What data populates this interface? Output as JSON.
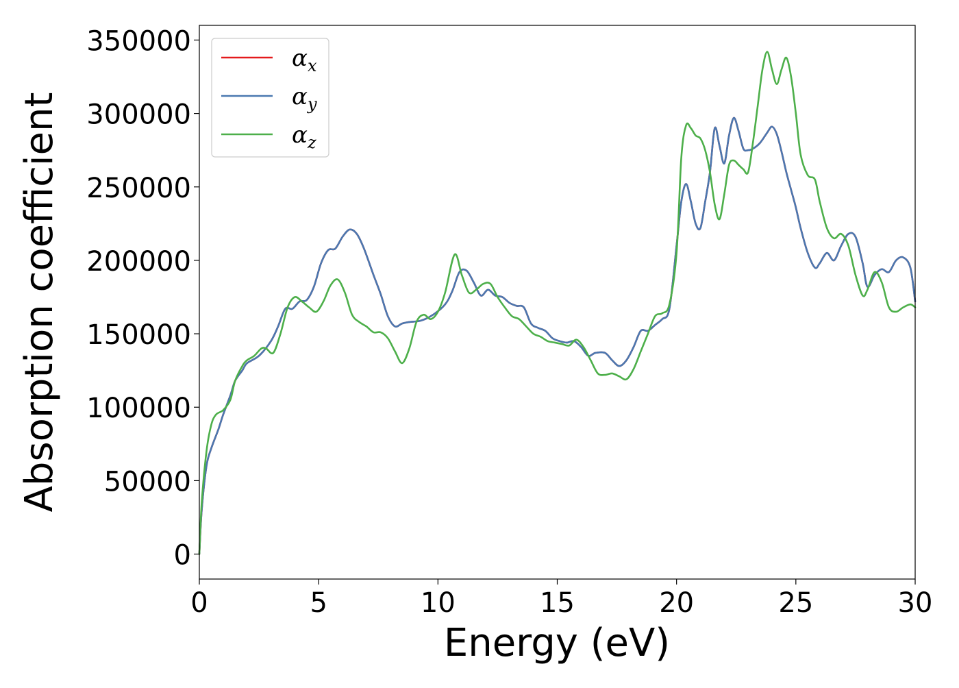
{
  "chart_data": {
    "type": "line",
    "title": "",
    "xlabel": "Energy (eV)",
    "ylabel": "Absorption coefficient",
    "xlim": [
      0,
      30
    ],
    "ylim": [
      -17000,
      360000
    ],
    "xticks": [
      0,
      5,
      10,
      15,
      20,
      25,
      30
    ],
    "yticks": [
      0,
      50000,
      100000,
      150000,
      200000,
      250000,
      300000,
      350000
    ],
    "xtick_labels": [
      "0",
      "5",
      "10",
      "15",
      "20",
      "25",
      "30"
    ],
    "ytick_labels": [
      "0",
      "50000",
      "100000",
      "150000",
      "200000",
      "250000",
      "300000",
      "350000"
    ],
    "grid": false,
    "legend_position": "top-left",
    "series": [
      {
        "name": "αx",
        "legend_base": "α",
        "legend_sub": "x",
        "color": "#e41a1c",
        "x": [
          0,
          0.1,
          0.3,
          0.5,
          0.8,
          1.0,
          1.3,
          1.5,
          1.8,
          2.0,
          2.5,
          3.0,
          3.3,
          3.6,
          3.9,
          4.2,
          4.5,
          4.8,
          5.1,
          5.4,
          5.7,
          6.0,
          6.3,
          6.6,
          6.9,
          7.3,
          7.6,
          7.9,
          8.2,
          8.5,
          8.8,
          9.3,
          9.8,
          10.3,
          10.6,
          10.9,
          11.2,
          11.5,
          11.8,
          12.1,
          12.4,
          12.7,
          13.0,
          13.3,
          13.6,
          13.9,
          14.2,
          14.5,
          14.8,
          15.1,
          15.4,
          15.7,
          16.0,
          16.3,
          16.6,
          17.0,
          17.3,
          17.6,
          17.9,
          18.2,
          18.5,
          18.8,
          19.1,
          19.4,
          19.7,
          20.0,
          20.2,
          20.4,
          20.6,
          20.8,
          21.0,
          21.2,
          21.4,
          21.6,
          21.8,
          22.0,
          22.2,
          22.4,
          22.6,
          22.8,
          23.0,
          23.2,
          23.5,
          23.8,
          24.0,
          24.2,
          24.4,
          24.6,
          24.8,
          25.0,
          25.2,
          25.5,
          25.8,
          26.0,
          26.3,
          26.6,
          26.9,
          27.2,
          27.5,
          27.8,
          28.0,
          28.3,
          28.6,
          28.9,
          29.2,
          29.5,
          29.8,
          30.0
        ],
        "values": [
          0,
          30000,
          60000,
          72000,
          85000,
          95000,
          108000,
          118000,
          125000,
          130000,
          135000,
          145000,
          155000,
          167000,
          167000,
          172000,
          173000,
          182000,
          198000,
          207000,
          208000,
          216000,
          221000,
          218000,
          208000,
          190000,
          177000,
          162000,
          155000,
          157000,
          158000,
          159000,
          163000,
          170000,
          179000,
          192000,
          193000,
          185000,
          176000,
          180000,
          176000,
          175000,
          171000,
          169000,
          168000,
          157000,
          154000,
          152000,
          147000,
          145000,
          144000,
          145000,
          141000,
          135000,
          137000,
          137000,
          132000,
          128000,
          132000,
          141000,
          152000,
          152000,
          156000,
          160000,
          167000,
          210000,
          240000,
          252000,
          240000,
          225000,
          222000,
          240000,
          260000,
          290000,
          278000,
          266000,
          285000,
          297000,
          288000,
          276000,
          275000,
          276000,
          280000,
          287000,
          291000,
          286000,
          274000,
          260000,
          248000,
          236000,
          222000,
          205000,
          195000,
          198000,
          205000,
          200000,
          210000,
          218000,
          216000,
          198000,
          182000,
          190000,
          194000,
          192000,
          200000,
          202000,
          195000,
          172000
        ]
      },
      {
        "name": "αy",
        "legend_base": "α",
        "legend_sub": "y",
        "color": "#4a78b0",
        "x": [
          0,
          0.1,
          0.3,
          0.5,
          0.8,
          1.0,
          1.3,
          1.5,
          1.8,
          2.0,
          2.5,
          3.0,
          3.3,
          3.6,
          3.9,
          4.2,
          4.5,
          4.8,
          5.1,
          5.4,
          5.7,
          6.0,
          6.3,
          6.6,
          6.9,
          7.3,
          7.6,
          7.9,
          8.2,
          8.5,
          8.8,
          9.3,
          9.8,
          10.3,
          10.6,
          10.9,
          11.2,
          11.5,
          11.8,
          12.1,
          12.4,
          12.7,
          13.0,
          13.3,
          13.6,
          13.9,
          14.2,
          14.5,
          14.8,
          15.1,
          15.4,
          15.7,
          16.0,
          16.3,
          16.6,
          17.0,
          17.3,
          17.6,
          17.9,
          18.2,
          18.5,
          18.8,
          19.1,
          19.4,
          19.7,
          20.0,
          20.2,
          20.4,
          20.6,
          20.8,
          21.0,
          21.2,
          21.4,
          21.6,
          21.8,
          22.0,
          22.2,
          22.4,
          22.6,
          22.8,
          23.0,
          23.2,
          23.5,
          23.8,
          24.0,
          24.2,
          24.4,
          24.6,
          24.8,
          25.0,
          25.2,
          25.5,
          25.8,
          26.0,
          26.3,
          26.6,
          26.9,
          27.2,
          27.5,
          27.8,
          28.0,
          28.3,
          28.6,
          28.9,
          29.2,
          29.5,
          29.8,
          30.0
        ],
        "values": [
          0,
          30000,
          60000,
          72000,
          85000,
          95000,
          108000,
          118000,
          125000,
          130000,
          135000,
          145000,
          155000,
          167000,
          167000,
          172000,
          173000,
          182000,
          198000,
          207000,
          208000,
          216000,
          221000,
          218000,
          208000,
          190000,
          177000,
          162000,
          155000,
          157000,
          158000,
          159000,
          163000,
          170000,
          179000,
          192000,
          193000,
          185000,
          176000,
          180000,
          176000,
          175000,
          171000,
          169000,
          168000,
          157000,
          154000,
          152000,
          147000,
          145000,
          144000,
          145000,
          141000,
          135000,
          137000,
          137000,
          132000,
          128000,
          132000,
          141000,
          152000,
          152000,
          156000,
          160000,
          167000,
          210000,
          240000,
          252000,
          240000,
          225000,
          222000,
          240000,
          260000,
          290000,
          278000,
          266000,
          285000,
          297000,
          288000,
          276000,
          275000,
          276000,
          280000,
          287000,
          291000,
          286000,
          274000,
          260000,
          248000,
          236000,
          222000,
          205000,
          195000,
          198000,
          205000,
          200000,
          210000,
          218000,
          216000,
          198000,
          182000,
          190000,
          194000,
          192000,
          200000,
          202000,
          195000,
          172000
        ]
      },
      {
        "name": "αz",
        "legend_base": "α",
        "legend_sub": "z",
        "color": "#4daf4a",
        "x": [
          0,
          0.1,
          0.3,
          0.5,
          0.7,
          1.0,
          1.3,
          1.5,
          1.8,
          2.0,
          2.3,
          2.6,
          2.8,
          3.1,
          3.4,
          3.7,
          4.0,
          4.3,
          4.6,
          4.9,
          5.2,
          5.5,
          5.8,
          6.1,
          6.4,
          6.7,
          7.0,
          7.3,
          7.6,
          7.9,
          8.2,
          8.5,
          8.8,
          9.1,
          9.4,
          9.7,
          10.0,
          10.3,
          10.7,
          11.0,
          11.3,
          11.6,
          11.9,
          12.2,
          12.5,
          12.8,
          13.1,
          13.4,
          13.7,
          14.0,
          14.3,
          14.6,
          14.9,
          15.2,
          15.5,
          15.8,
          16.1,
          16.4,
          16.7,
          17.0,
          17.3,
          17.6,
          17.9,
          18.2,
          18.5,
          18.8,
          19.1,
          19.4,
          19.7,
          20.0,
          20.2,
          20.4,
          20.6,
          20.8,
          21.0,
          21.2,
          21.4,
          21.6,
          21.8,
          22.0,
          22.2,
          22.4,
          22.6,
          22.8,
          23.0,
          23.2,
          23.4,
          23.6,
          23.8,
          24.0,
          24.2,
          24.4,
          24.6,
          24.8,
          25.0,
          25.2,
          25.5,
          25.8,
          26.0,
          26.3,
          26.6,
          26.9,
          27.2,
          27.5,
          27.8,
          28.0,
          28.3,
          28.6,
          28.9,
          29.2,
          29.5,
          29.8,
          30.0
        ],
        "values": [
          0,
          35000,
          70000,
          88000,
          95000,
          98000,
          105000,
          118000,
          128000,
          132000,
          135000,
          140000,
          140000,
          137000,
          150000,
          168000,
          175000,
          172000,
          168000,
          165000,
          172000,
          183000,
          187000,
          178000,
          163000,
          158000,
          155000,
          151000,
          151000,
          147000,
          138000,
          130000,
          140000,
          158000,
          163000,
          160000,
          165000,
          178000,
          204000,
          190000,
          178000,
          180000,
          184000,
          184000,
          175000,
          168000,
          162000,
          160000,
          155000,
          150000,
          148000,
          145000,
          144000,
          143000,
          142000,
          146000,
          141000,
          132000,
          123000,
          122000,
          123000,
          121000,
          119000,
          126000,
          138000,
          150000,
          162000,
          164000,
          170000,
          205000,
          270000,
          292000,
          290000,
          285000,
          283000,
          275000,
          260000,
          238000,
          228000,
          245000,
          265000,
          268000,
          265000,
          262000,
          260000,
          280000,
          305000,
          330000,
          342000,
          330000,
          320000,
          330000,
          338000,
          325000,
          300000,
          272000,
          258000,
          255000,
          240000,
          222000,
          215000,
          218000,
          210000,
          190000,
          176000,
          180000,
          192000,
          185000,
          168000,
          165000,
          168000,
          170000,
          168000
        ]
      }
    ]
  }
}
